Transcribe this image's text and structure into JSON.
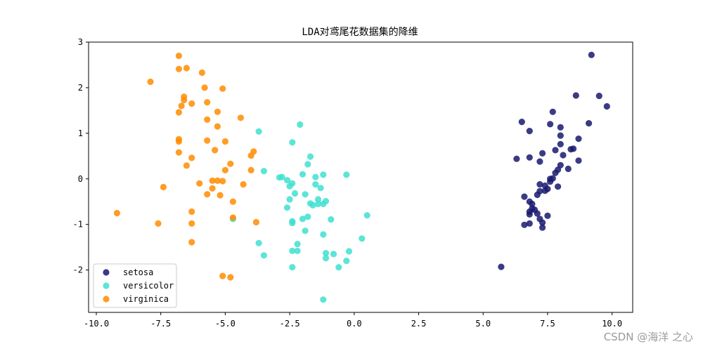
{
  "chart_data": {
    "type": "scatter",
    "title": "LDA对鸢尾花数据集的降维",
    "xlabel": "",
    "ylabel": "",
    "xlim": [
      -10.3,
      10.8
    ],
    "ylim": [
      -2.93,
      3.0
    ],
    "xticks": [
      -10.0,
      -7.5,
      -5.0,
      -2.5,
      0.0,
      2.5,
      5.0,
      7.5,
      10.0
    ],
    "xtick_labels": [
      "-10.0",
      "-7.5",
      "-5.0",
      "-2.5",
      "0.0",
      "2.5",
      "5.0",
      "7.5",
      "10.0"
    ],
    "yticks": [
      -2,
      -1,
      0,
      1,
      2,
      3
    ],
    "ytick_labels": [
      "-2",
      "-1",
      "0",
      "1",
      "2",
      "3"
    ],
    "grid": false,
    "legend_position": "lower-left",
    "series": [
      {
        "name": "setosa",
        "color": "#191970",
        "points": [
          [
            9.2,
            2.72
          ],
          [
            8.6,
            1.83
          ],
          [
            9.5,
            1.82
          ],
          [
            9.8,
            1.59
          ],
          [
            7.7,
            1.47
          ],
          [
            6.5,
            1.25
          ],
          [
            7.6,
            1.2
          ],
          [
            9.1,
            1.22
          ],
          [
            6.8,
            1.05
          ],
          [
            8.0,
            1.13
          ],
          [
            8.0,
            0.95
          ],
          [
            8.7,
            0.88
          ],
          [
            8.0,
            0.76
          ],
          [
            7.8,
            0.63
          ],
          [
            7.3,
            0.56
          ],
          [
            8.4,
            0.65
          ],
          [
            8.5,
            0.66
          ],
          [
            6.3,
            0.44
          ],
          [
            6.8,
            0.47
          ],
          [
            7.2,
            0.38
          ],
          [
            8.1,
            0.52
          ],
          [
            8.7,
            0.4
          ],
          [
            8.0,
            0.3
          ],
          [
            7.9,
            0.2
          ],
          [
            7.8,
            0.13
          ],
          [
            8.3,
            0.22
          ],
          [
            7.6,
            0.0
          ],
          [
            7.7,
            0.01
          ],
          [
            7.6,
            -0.06
          ],
          [
            7.2,
            -0.12
          ],
          [
            7.4,
            -0.15
          ],
          [
            7.9,
            -0.17
          ],
          [
            7.5,
            -0.22
          ],
          [
            7.2,
            -0.27
          ],
          [
            7.4,
            -0.26
          ],
          [
            7.1,
            -0.35
          ],
          [
            6.6,
            -0.39
          ],
          [
            6.8,
            -0.5
          ],
          [
            6.9,
            -0.55
          ],
          [
            6.9,
            -0.65
          ],
          [
            7.0,
            -0.68
          ],
          [
            6.8,
            -0.72
          ],
          [
            7.1,
            -0.76
          ],
          [
            6.8,
            -0.78
          ],
          [
            7.5,
            -0.81
          ],
          [
            7.2,
            -0.88
          ],
          [
            6.8,
            -0.98
          ],
          [
            7.3,
            -0.96
          ],
          [
            6.6,
            -1.01
          ],
          [
            7.3,
            -1.07
          ],
          [
            5.7,
            -1.93
          ]
        ]
      },
      {
        "name": "versicolor",
        "color": "#40E0D0",
        "points": [
          [
            -3.7,
            1.04
          ],
          [
            -2.1,
            1.19
          ],
          [
            -2.4,
            0.8
          ],
          [
            -1.7,
            0.49
          ],
          [
            -1.8,
            0.32
          ],
          [
            -3.5,
            0.17
          ],
          [
            -2.0,
            0.1
          ],
          [
            -1.5,
            0.04
          ],
          [
            -2.8,
            0.04
          ],
          [
            -1.2,
            0.09
          ],
          [
            -0.3,
            0.09
          ],
          [
            -2.9,
            0.03
          ],
          [
            -2.6,
            -0.03
          ],
          [
            -2.4,
            -0.1
          ],
          [
            -2.5,
            -0.16
          ],
          [
            -1.5,
            -0.12
          ],
          [
            -1.3,
            -0.2
          ],
          [
            -2.3,
            -0.32
          ],
          [
            -1.9,
            -0.34
          ],
          [
            -1.4,
            -0.45
          ],
          [
            -2.5,
            -0.45
          ],
          [
            -1.7,
            -0.54
          ],
          [
            -1.4,
            -0.55
          ],
          [
            -1.2,
            -0.55
          ],
          [
            -1.1,
            -0.49
          ],
          [
            -1.6,
            -0.58
          ],
          [
            -2.6,
            -0.63
          ],
          [
            -1.8,
            -0.83
          ],
          [
            -2.0,
            -0.88
          ],
          [
            -0.9,
            -0.89
          ],
          [
            -2.4,
            -0.93
          ],
          [
            -2.4,
            -0.97
          ],
          [
            0.5,
            -0.8
          ],
          [
            -4.7,
            -0.88
          ],
          [
            -1.9,
            -1.14
          ],
          [
            -1.2,
            -1.22
          ],
          [
            0.3,
            -1.31
          ],
          [
            -2.2,
            -1.43
          ],
          [
            -3.7,
            -1.41
          ],
          [
            -2.4,
            -1.58
          ],
          [
            -2.2,
            -1.58
          ],
          [
            -1.1,
            -1.63
          ],
          [
            -0.2,
            -1.59
          ],
          [
            -0.8,
            -1.65
          ],
          [
            -3.5,
            -1.68
          ],
          [
            -1.1,
            -1.74
          ],
          [
            -0.3,
            -1.8
          ],
          [
            -0.6,
            -1.94
          ],
          [
            -2.4,
            -1.94
          ],
          [
            -1.2,
            -2.65
          ]
        ]
      },
      {
        "name": "virginica",
        "color": "#FF8C00",
        "points": [
          [
            -6.8,
            2.7
          ],
          [
            -6.8,
            2.41
          ],
          [
            -6.5,
            2.43
          ],
          [
            -5.9,
            2.33
          ],
          [
            -7.9,
            2.13
          ],
          [
            -5.8,
            2.0
          ],
          [
            -5.1,
            1.98
          ],
          [
            -6.6,
            1.8
          ],
          [
            -6.6,
            1.73
          ],
          [
            -6.3,
            1.65
          ],
          [
            -5.7,
            1.68
          ],
          [
            -6.7,
            1.6
          ],
          [
            -6.8,
            1.46
          ],
          [
            -5.3,
            1.47
          ],
          [
            -5.7,
            1.3
          ],
          [
            -4.4,
            1.34
          ],
          [
            -5.3,
            1.15
          ],
          [
            -6.8,
            0.87
          ],
          [
            -6.8,
            0.82
          ],
          [
            -5.7,
            0.84
          ],
          [
            -5.0,
            0.82
          ],
          [
            -5.4,
            0.63
          ],
          [
            -3.9,
            0.6
          ],
          [
            -6.8,
            0.58
          ],
          [
            -4.0,
            0.51
          ],
          [
            -6.3,
            0.46
          ],
          [
            -4.8,
            0.33
          ],
          [
            -6.5,
            0.29
          ],
          [
            -5.0,
            0.19
          ],
          [
            -4.0,
            0.19
          ],
          [
            -5.5,
            -0.04
          ],
          [
            -5.3,
            -0.04
          ],
          [
            -5.1,
            -0.05
          ],
          [
            -6.0,
            -0.1
          ],
          [
            -4.3,
            -0.12
          ],
          [
            -7.4,
            -0.18
          ],
          [
            -5.5,
            -0.21
          ],
          [
            -5.7,
            -0.34
          ],
          [
            -5.2,
            -0.36
          ],
          [
            -4.7,
            -0.5
          ],
          [
            -9.2,
            -0.75
          ],
          [
            -6.3,
            -0.72
          ],
          [
            -4.7,
            -0.85
          ],
          [
            -3.8,
            -0.95
          ],
          [
            -7.6,
            -0.98
          ],
          [
            -6.3,
            -0.98
          ],
          [
            -6.3,
            -1.39
          ],
          [
            -5.1,
            -2.13
          ],
          [
            -4.8,
            -2.16
          ]
        ]
      }
    ]
  },
  "watermark": "CSDN @海洋 之心"
}
